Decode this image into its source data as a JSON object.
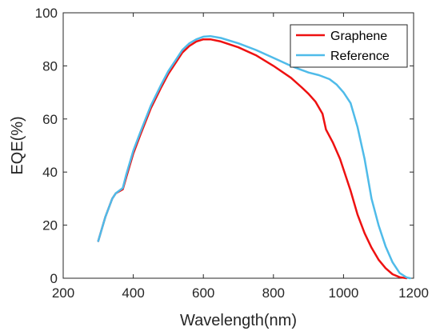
{
  "chart_data": {
    "type": "line",
    "title": "",
    "xlabel": "Wavelength(nm)",
    "ylabel": "EQE(%)",
    "xlim": [
      200,
      1200
    ],
    "ylim": [
      0,
      100
    ],
    "xticks": [
      200,
      400,
      600,
      800,
      1000,
      1200
    ],
    "yticks": [
      0,
      20,
      40,
      60,
      80,
      100
    ],
    "grid": false,
    "legend_position": "top-right",
    "series": [
      {
        "name": "Graphene",
        "color": "#ee1111",
        "points": [
          [
            300,
            14
          ],
          [
            320,
            23
          ],
          [
            340,
            30
          ],
          [
            350,
            32
          ],
          [
            370,
            33.5
          ],
          [
            380,
            38
          ],
          [
            400,
            47
          ],
          [
            420,
            54
          ],
          [
            450,
            64
          ],
          [
            480,
            72
          ],
          [
            500,
            77
          ],
          [
            520,
            81
          ],
          [
            540,
            85
          ],
          [
            560,
            87.5
          ],
          [
            580,
            89.2
          ],
          [
            600,
            90
          ],
          [
            620,
            90
          ],
          [
            650,
            89.2
          ],
          [
            700,
            87
          ],
          [
            750,
            84
          ],
          [
            800,
            80
          ],
          [
            850,
            75.5
          ],
          [
            880,
            72
          ],
          [
            900,
            69.5
          ],
          [
            920,
            66.5
          ],
          [
            940,
            62
          ],
          [
            950,
            56
          ],
          [
            970,
            51
          ],
          [
            990,
            45
          ],
          [
            1000,
            41
          ],
          [
            1020,
            33
          ],
          [
            1040,
            24
          ],
          [
            1060,
            17
          ],
          [
            1080,
            11.5
          ],
          [
            1100,
            7
          ],
          [
            1120,
            3.8
          ],
          [
            1140,
            1.5
          ],
          [
            1160,
            0.4
          ],
          [
            1180,
            0
          ]
        ]
      },
      {
        "name": "Reference",
        "color": "#4fbbe9",
        "points": [
          [
            300,
            14
          ],
          [
            320,
            23
          ],
          [
            340,
            30
          ],
          [
            350,
            32
          ],
          [
            370,
            34
          ],
          [
            380,
            39
          ],
          [
            400,
            48
          ],
          [
            420,
            55
          ],
          [
            450,
            65
          ],
          [
            480,
            73
          ],
          [
            500,
            78
          ],
          [
            520,
            82
          ],
          [
            540,
            86
          ],
          [
            560,
            88.5
          ],
          [
            580,
            90
          ],
          [
            600,
            91
          ],
          [
            620,
            91.2
          ],
          [
            650,
            90.5
          ],
          [
            700,
            88.5
          ],
          [
            750,
            86
          ],
          [
            800,
            83
          ],
          [
            850,
            80
          ],
          [
            880,
            78.5
          ],
          [
            900,
            77.5
          ],
          [
            930,
            76.5
          ],
          [
            960,
            75
          ],
          [
            980,
            73
          ],
          [
            1000,
            70
          ],
          [
            1020,
            66
          ],
          [
            1040,
            57
          ],
          [
            1060,
            45
          ],
          [
            1080,
            30
          ],
          [
            1100,
            20
          ],
          [
            1120,
            12
          ],
          [
            1140,
            6
          ],
          [
            1160,
            2
          ],
          [
            1180,
            0.3
          ],
          [
            1190,
            0
          ]
        ]
      }
    ]
  }
}
